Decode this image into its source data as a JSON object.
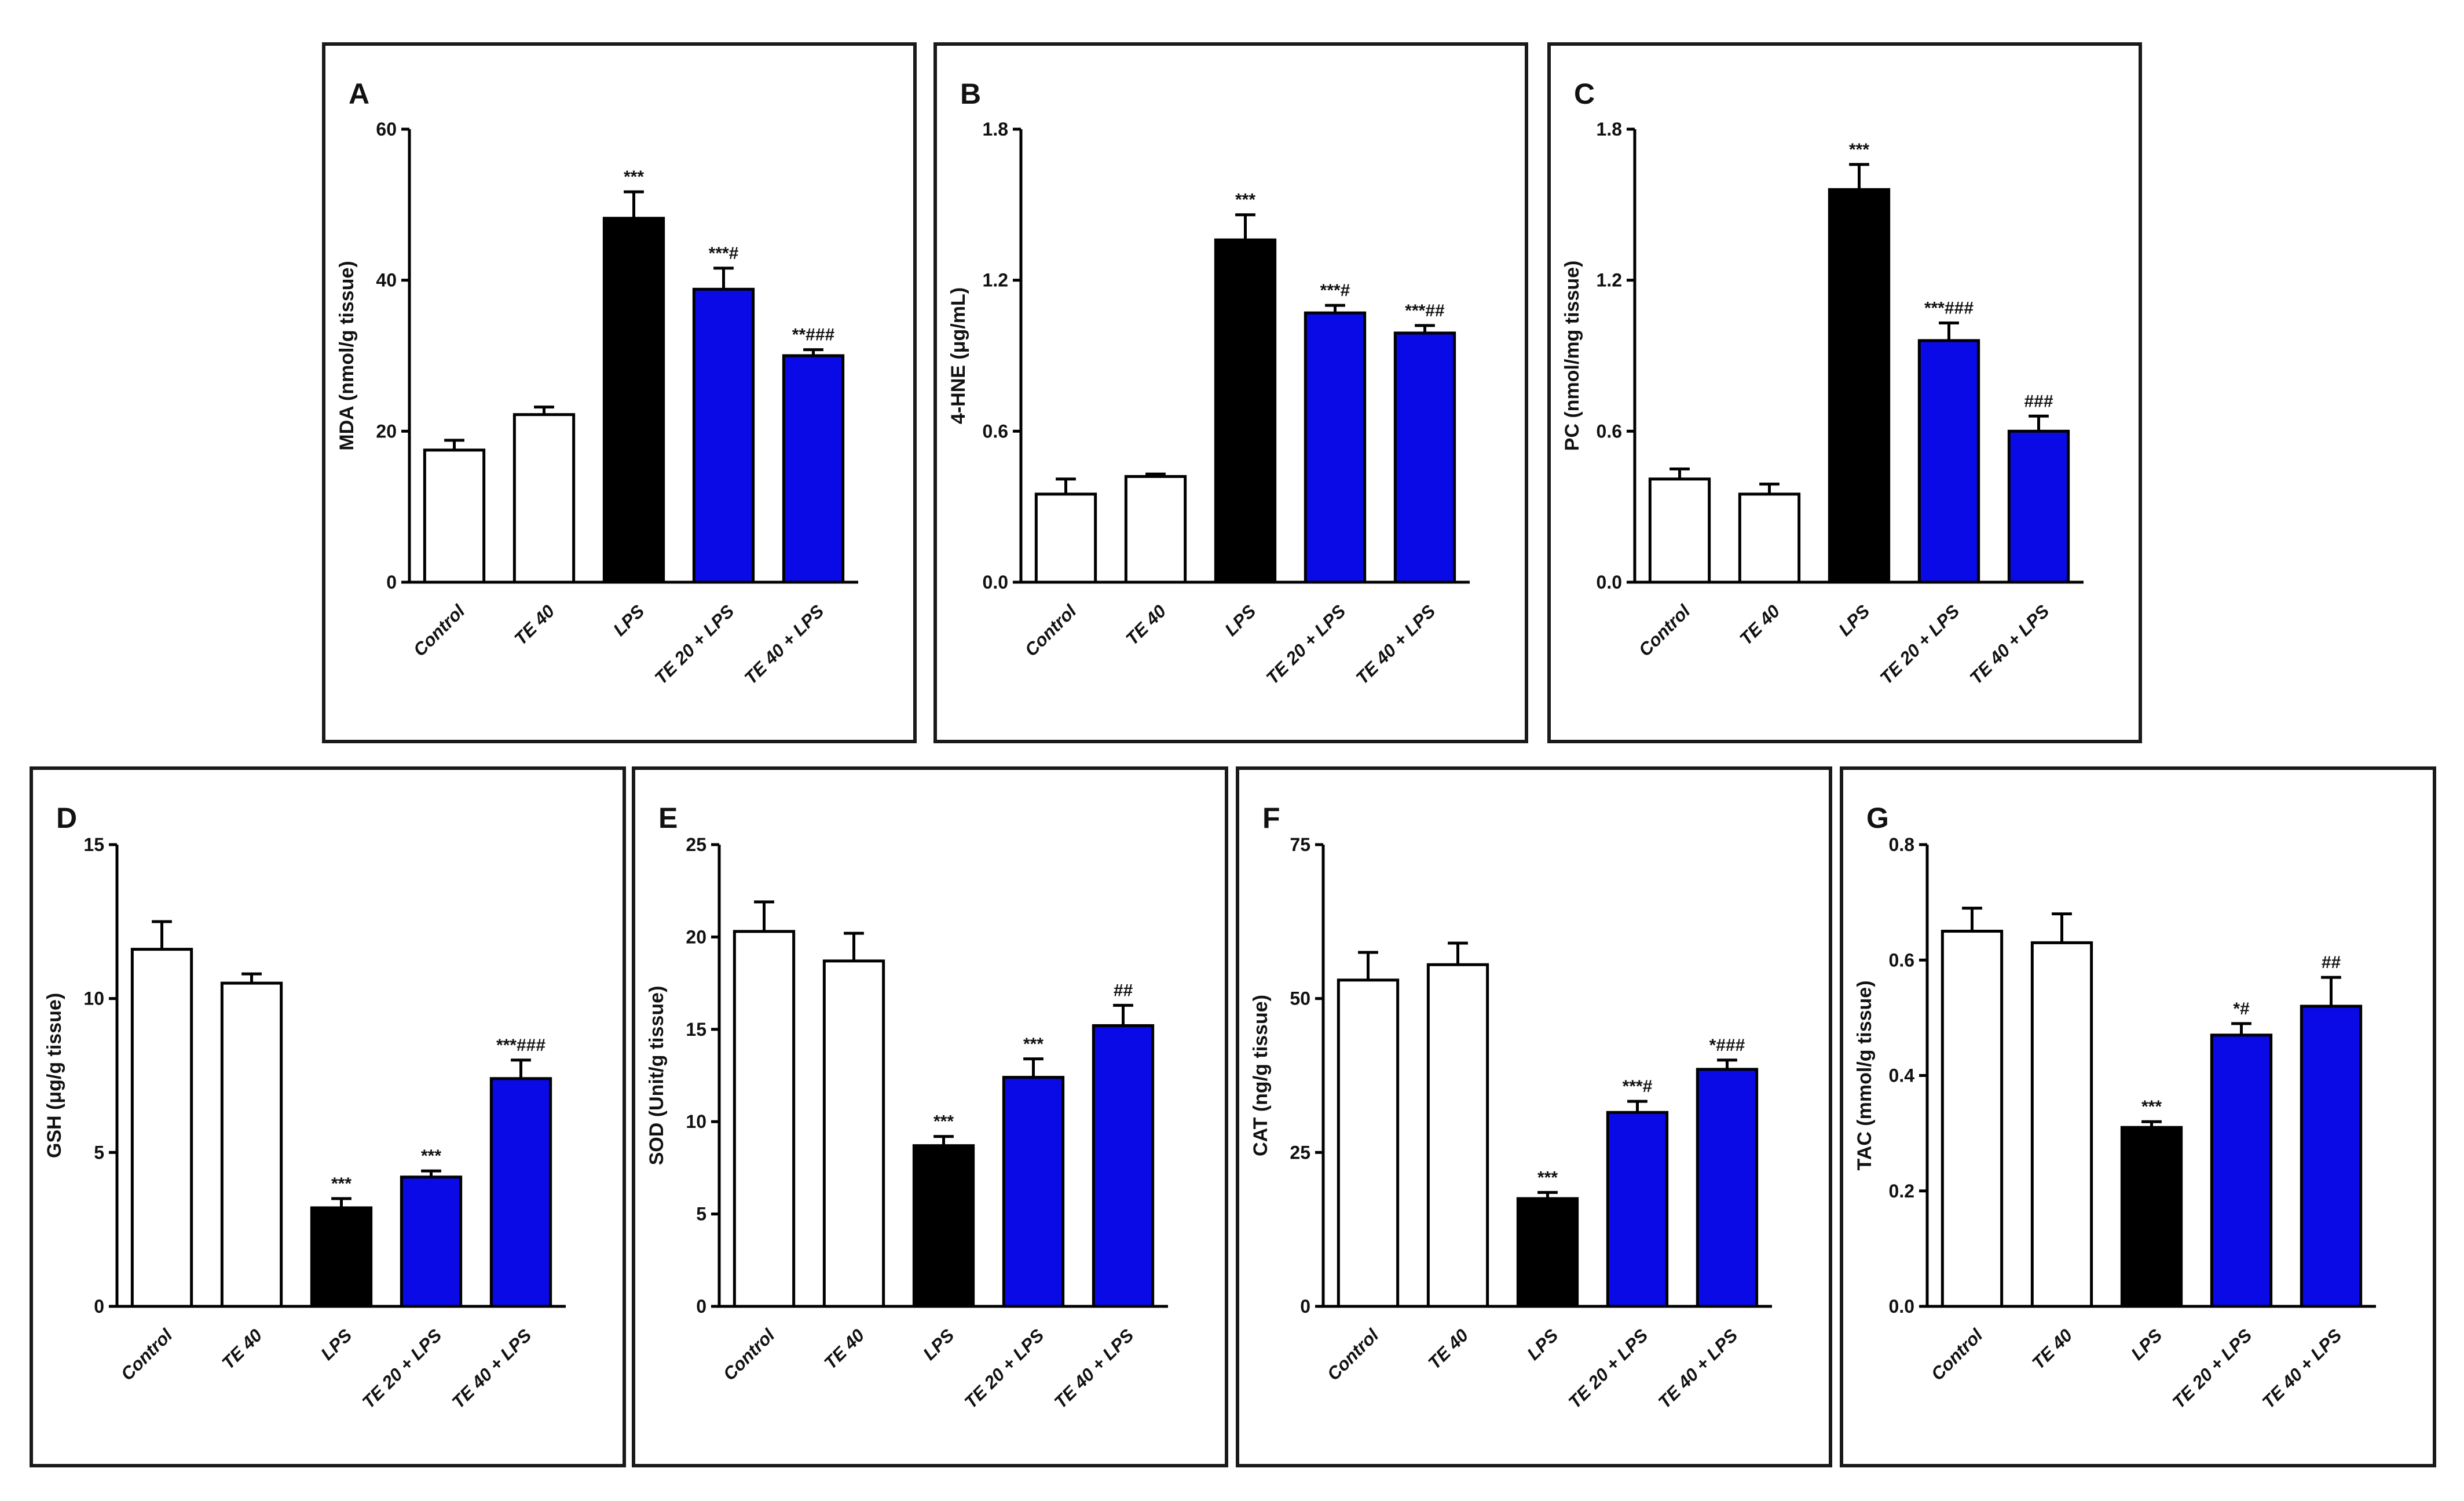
{
  "colors": {
    "control": "#ffffff",
    "te40": "#ffffff",
    "lps": "#000000",
    "te_lps": "#0a0ae6",
    "stroke": "#000000"
  },
  "categories": [
    "Control",
    "TE 40",
    "LPS",
    "TE 20 + LPS",
    "TE 40 + LPS"
  ],
  "chart_data": [
    {
      "id": "A",
      "type": "bar",
      "panel_label": "A",
      "ylabel": "MDA (nmol/g tissue)",
      "ylim": [
        0,
        60
      ],
      "yticks": [
        "0",
        "20",
        "40",
        "60"
      ],
      "categories": [
        "Control",
        "TE 40",
        "LPS",
        "TE 20 + LPS",
        "TE 40 + LPS"
      ],
      "values": [
        17.5,
        22.2,
        48.2,
        38.8,
        30.0
      ],
      "errors": [
        1.3,
        1.0,
        3.5,
        2.8,
        0.8
      ],
      "annotations": [
        "",
        "",
        "***",
        "***#",
        "**###"
      ]
    },
    {
      "id": "B",
      "type": "bar",
      "panel_label": "B",
      "ylabel": "4-HNE (μg/mL)",
      "ylim": [
        0,
        1.8
      ],
      "yticks": [
        "0.0",
        "0.6",
        "1.2",
        "1.8"
      ],
      "categories": [
        "Control",
        "TE 40",
        "LPS",
        "TE 20 + LPS",
        "TE 40 + LPS"
      ],
      "values": [
        0.35,
        0.42,
        1.36,
        1.07,
        0.99
      ],
      "errors": [
        0.06,
        0.01,
        0.1,
        0.03,
        0.03
      ],
      "annotations": [
        "",
        "",
        "***",
        "***#",
        "***##"
      ]
    },
    {
      "id": "C",
      "type": "bar",
      "panel_label": "C",
      "ylabel": "PC (nmol/mg tissue)",
      "ylim": [
        0,
        1.8
      ],
      "yticks": [
        "0.0",
        "0.6",
        "1.2",
        "1.8"
      ],
      "categories": [
        "Control",
        "TE 40",
        "LPS",
        "TE 20 + LPS",
        "TE 40 + LPS"
      ],
      "values": [
        0.41,
        0.35,
        1.56,
        0.96,
        0.6
      ],
      "errors": [
        0.04,
        0.04,
        0.1,
        0.07,
        0.06
      ],
      "annotations": [
        "",
        "",
        "***",
        "***###",
        "###"
      ]
    },
    {
      "id": "D",
      "type": "bar",
      "panel_label": "D",
      "ylabel": "GSH (μg/g tissue)",
      "ylim": [
        0,
        15
      ],
      "yticks": [
        "0",
        "5",
        "10",
        "15"
      ],
      "categories": [
        "Control",
        "TE 40",
        "LPS",
        "TE 20 + LPS",
        "TE 40 + LPS"
      ],
      "values": [
        11.6,
        10.5,
        3.2,
        4.2,
        7.4
      ],
      "errors": [
        0.9,
        0.3,
        0.3,
        0.2,
        0.6
      ],
      "annotations": [
        "",
        "",
        "***",
        "***",
        "***###"
      ]
    },
    {
      "id": "E",
      "type": "bar",
      "panel_label": "E",
      "ylabel": "SOD (Unit/g tissue)",
      "ylim": [
        0,
        25
      ],
      "yticks": [
        "0",
        "5",
        "10",
        "15",
        "20",
        "25"
      ],
      "categories": [
        "Control",
        "TE 40",
        "LPS",
        "TE 20 + LPS",
        "TE 40 + LPS"
      ],
      "values": [
        20.3,
        18.7,
        8.7,
        12.4,
        15.2
      ],
      "errors": [
        1.6,
        1.5,
        0.5,
        1.0,
        1.1
      ],
      "annotations": [
        "",
        "",
        "***",
        "***",
        "##"
      ]
    },
    {
      "id": "F",
      "type": "bar",
      "panel_label": "F",
      "ylabel": "CAT (ng/g tissue)",
      "ylim": [
        0,
        75
      ],
      "yticks": [
        "0",
        "25",
        "50",
        "75"
      ],
      "categories": [
        "Control",
        "TE 40",
        "LPS",
        "TE 20 + LPS",
        "TE 40 + LPS"
      ],
      "values": [
        53,
        55.5,
        17.5,
        31.5,
        38.5
      ],
      "errors": [
        4.5,
        3.5,
        1.0,
        1.8,
        1.5
      ],
      "annotations": [
        "",
        "",
        "***",
        "***#",
        "*###"
      ]
    },
    {
      "id": "G",
      "type": "bar",
      "panel_label": "G",
      "ylabel": "TAC (mmol/g tissue)",
      "ylim": [
        0,
        0.8
      ],
      "yticks": [
        "0.0",
        "0.2",
        "0.4",
        "0.6",
        "0.8"
      ],
      "categories": [
        "Control",
        "TE 40",
        "LPS",
        "TE 20 + LPS",
        "TE 40 + LPS"
      ],
      "values": [
        0.65,
        0.63,
        0.31,
        0.47,
        0.52
      ],
      "errors": [
        0.04,
        0.05,
        0.01,
        0.02,
        0.05
      ],
      "annotations": [
        "",
        "",
        "***",
        "*#",
        "##"
      ]
    }
  ]
}
